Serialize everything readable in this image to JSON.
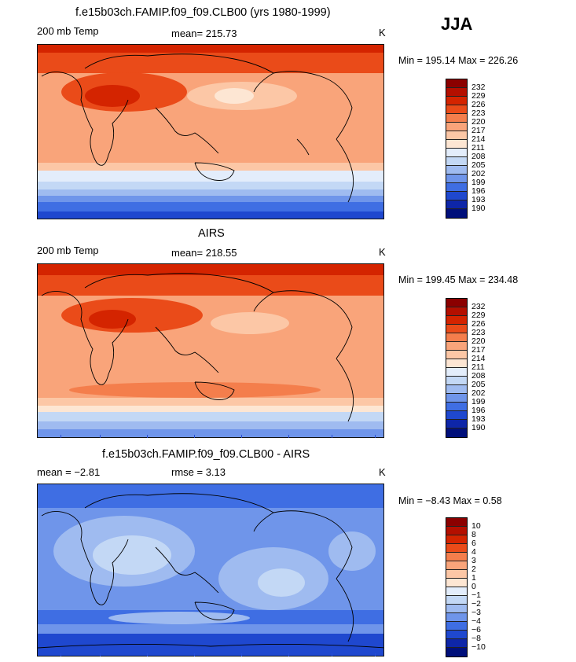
{
  "season": "JJA",
  "panels": [
    {
      "title": "f.e15b03ch.FAMIP.f09_f09.CLB00 (yrs 1980-1999)",
      "left_label": "200 mb Temp",
      "center_label": "mean= 215.73",
      "unit": "K",
      "minmax": "Min = 195.14 Max = 226.26",
      "scale": "abs",
      "colorbar_labels": [
        "232",
        "229",
        "226",
        "223",
        "220",
        "217",
        "214",
        "211",
        "208",
        "205",
        "202",
        "199",
        "196",
        "193",
        "190"
      ]
    },
    {
      "title": "AIRS",
      "left_label": "200 mb Temp",
      "center_label": "mean= 218.55",
      "unit": "K",
      "minmax": "Min = 199.45 Max = 234.48",
      "scale": "abs",
      "colorbar_labels": [
        "232",
        "229",
        "226",
        "223",
        "220",
        "217",
        "214",
        "211",
        "208",
        "205",
        "202",
        "199",
        "196",
        "193",
        "190"
      ]
    },
    {
      "title": "f.e15b03ch.FAMIP.f09_f09.CLB00 - AIRS",
      "left_label": "mean = −2.81",
      "center_label": "rmse = 3.13",
      "unit": "K",
      "minmax": "Min = −8.43 Max = 0.58",
      "scale": "diff",
      "colorbar_labels": [
        "10",
        "8",
        "6",
        "4",
        "3",
        "2",
        "1",
        "0",
        "−1",
        "−2",
        "−3",
        "−4",
        "−6",
        "−8",
        "−10"
      ]
    }
  ],
  "colors": {
    "abs_scale": [
      "#8b0000",
      "#b40f00",
      "#d42400",
      "#ea4b19",
      "#f47e4c",
      "#f9a47a",
      "#fcc7a6",
      "#fde6d3",
      "#e3edfb",
      "#c3d8f5",
      "#9fbbf0",
      "#6f95ea",
      "#3f6ee3",
      "#1f48cf",
      "#0e26a8",
      "#000f7a"
    ],
    "diff_scale": [
      "#8b0000",
      "#b40f00",
      "#d42400",
      "#ea4b19",
      "#f47e4c",
      "#f9a47a",
      "#fcc7a6",
      "#fde6d3",
      "#e3edfb",
      "#c3d8f5",
      "#9fbbf0",
      "#6f95ea",
      "#3f6ee3",
      "#1f48cf",
      "#0e26a8",
      "#000f7a"
    ],
    "coastline": "#000000"
  }
}
